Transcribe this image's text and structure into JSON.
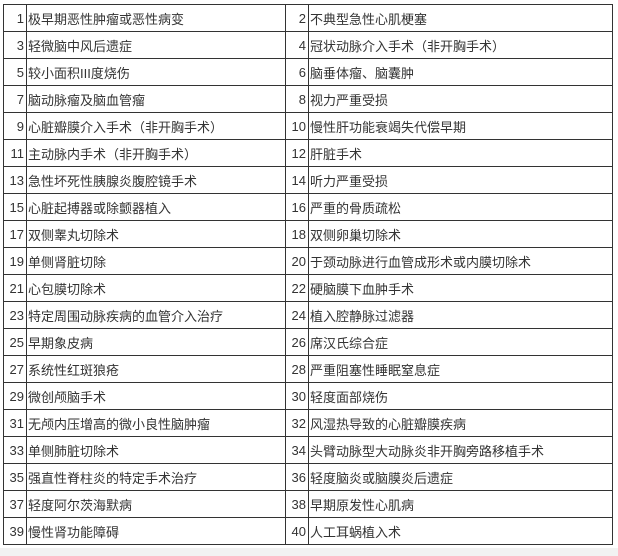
{
  "rows": [
    [
      {
        "n": "1",
        "t": "极早期恶性肿瘤或恶性病变"
      },
      {
        "n": "2",
        "t": "不典型急性心肌梗塞"
      }
    ],
    [
      {
        "n": "3",
        "t": "轻微脑中风后遗症"
      },
      {
        "n": "4",
        "t": "冠状动脉介入手术（非开胸手术）"
      }
    ],
    [
      {
        "n": "5",
        "t": "较小面积III度烧伤"
      },
      {
        "n": "6",
        "t": "脑垂体瘤、脑囊肿"
      }
    ],
    [
      {
        "n": "7",
        "t": "脑动脉瘤及脑血管瘤"
      },
      {
        "n": "8",
        "t": "视力严重受损"
      }
    ],
    [
      {
        "n": "9",
        "t": "心脏瓣膜介入手术（非开胸手术）"
      },
      {
        "n": "10",
        "t": "慢性肝功能衰竭失代偿早期"
      }
    ],
    [
      {
        "n": "11",
        "t": "主动脉内手术（非开胸手术）"
      },
      {
        "n": "12",
        "t": "肝脏手术"
      }
    ],
    [
      {
        "n": "13",
        "t": "急性坏死性胰腺炎腹腔镜手术"
      },
      {
        "n": "14",
        "t": "听力严重受损"
      }
    ],
    [
      {
        "n": "15",
        "t": "心脏起搏器或除颤器植入"
      },
      {
        "n": "16",
        "t": "严重的骨质疏松"
      }
    ],
    [
      {
        "n": "17",
        "t": "双侧睾丸切除术"
      },
      {
        "n": "18",
        "t": "双侧卵巢切除术"
      }
    ],
    [
      {
        "n": "19",
        "t": "单侧肾脏切除"
      },
      {
        "n": "20",
        "t": "于颈动脉进行血管成形术或内膜切除术"
      }
    ],
    [
      {
        "n": "21",
        "t": "心包膜切除术"
      },
      {
        "n": "22",
        "t": "硬脑膜下血肿手术"
      }
    ],
    [
      {
        "n": "23",
        "t": "特定周围动脉疾病的血管介入治疗"
      },
      {
        "n": "24",
        "t": "植入腔静脉过滤器"
      }
    ],
    [
      {
        "n": "25",
        "t": "早期象皮病"
      },
      {
        "n": "26",
        "t": "席汉氏综合症"
      }
    ],
    [
      {
        "n": "27",
        "t": "系统性红斑狼疮"
      },
      {
        "n": "28",
        "t": "严重阻塞性睡眠窒息症"
      }
    ],
    [
      {
        "n": "29",
        "t": "微创颅脑手术"
      },
      {
        "n": "30",
        "t": "轻度面部烧伤"
      }
    ],
    [
      {
        "n": "31",
        "t": "无颅内压增高的微小良性脑肿瘤"
      },
      {
        "n": "32",
        "t": "风湿热导致的心脏瓣膜疾病"
      }
    ],
    [
      {
        "n": "33",
        "t": "单侧肺脏切除术"
      },
      {
        "n": "34",
        "t": "头臂动脉型大动脉炎非开胸旁路移植手术"
      }
    ],
    [
      {
        "n": "35",
        "t": "强直性脊柱炎的特定手术治疗"
      },
      {
        "n": "36",
        "t": "轻度脑炎或脑膜炎后遗症"
      }
    ],
    [
      {
        "n": "37",
        "t": "轻度阿尔茨海默病"
      },
      {
        "n": "38",
        "t": "早期原发性心肌病"
      }
    ],
    [
      {
        "n": "39",
        "t": "慢性肾功能障碍"
      },
      {
        "n": "40",
        "t": "人工耳蜗植入术"
      }
    ]
  ]
}
